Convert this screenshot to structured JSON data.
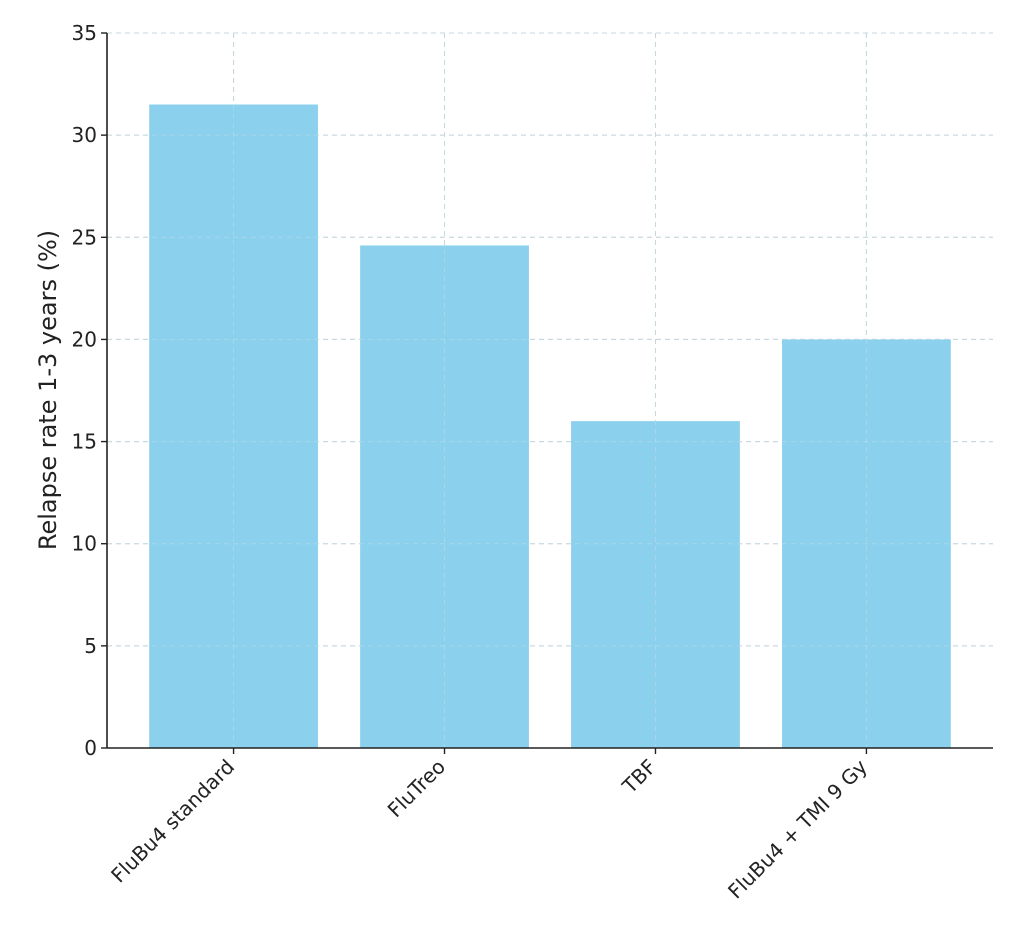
{
  "chart_data": {
    "type": "bar",
    "categories": [
      "FluBu4 standard",
      "FluTreo",
      "TBF",
      "FluBu4 + TMI 9 Gy"
    ],
    "values": [
      31.5,
      24.6,
      16.0,
      20.0
    ],
    "title": "",
    "xlabel": "",
    "ylabel": "Relapse rate 1-3 years (%)",
    "ylim": [
      0,
      35
    ],
    "yticks": [
      0,
      5,
      10,
      15,
      20,
      25,
      30,
      35
    ],
    "grid": true,
    "bar_color": "#87ceeb"
  }
}
